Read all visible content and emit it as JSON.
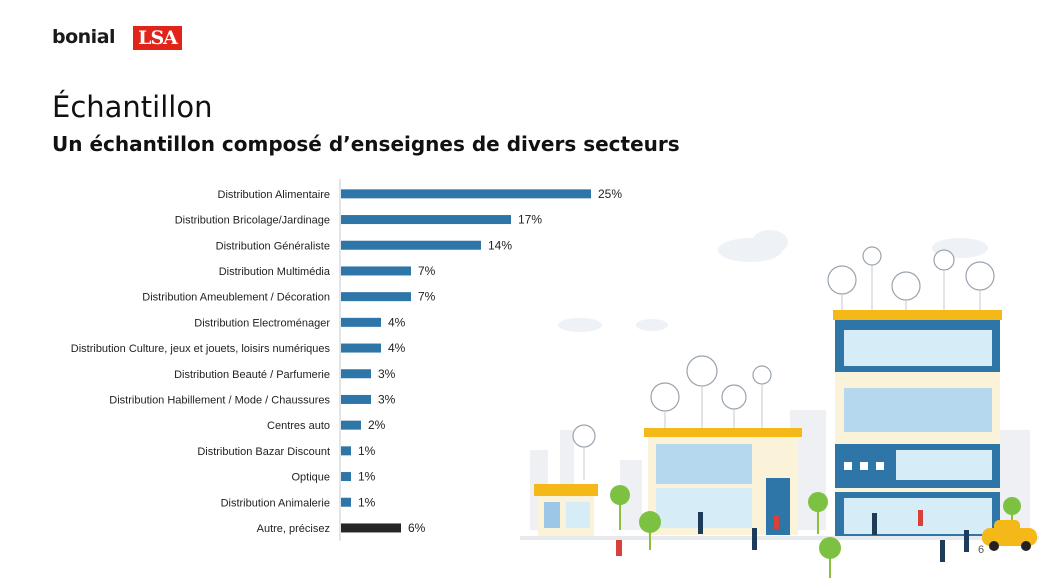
{
  "logos": {
    "bonial": "bonial",
    "lsa": "LSA"
  },
  "title": "Échantillon",
  "subtitle": "Un échantillon composé d’enseignes de divers secteurs",
  "page_number": "6",
  "colors": {
    "bar": "#2e75a8",
    "bar_other": "#262626"
  },
  "chart_data": {
    "type": "bar",
    "orientation": "horizontal",
    "title": "",
    "xlabel": "",
    "ylabel": "",
    "xlim": [
      0,
      25
    ],
    "grid": false,
    "categories": [
      "Distribution Alimentaire",
      "Distribution Bricolage/Jardinage",
      "Distribution Généraliste",
      "Distribution Multimédia",
      "Distribution Ameublement / Décoration",
      "Distribution Electroménager",
      "Distribution Culture, jeux et jouets, loisirs numériques",
      "Distribution Beauté / Parfumerie",
      "Distribution Habillement / Mode / Chaussures",
      "Centres auto",
      "Distribution Bazar Discount",
      "Optique",
      "Distribution Animalerie",
      "Autre, précisez"
    ],
    "values": [
      25,
      17,
      14,
      7,
      7,
      4,
      4,
      3,
      3,
      2,
      1,
      1,
      1,
      6
    ],
    "value_labels": [
      "25%",
      "17%",
      "14%",
      "7%",
      "7%",
      "4%",
      "4%",
      "3%",
      "3%",
      "2%",
      "1%",
      "1%",
      "1%",
      "6%"
    ],
    "highlight_last": true
  }
}
